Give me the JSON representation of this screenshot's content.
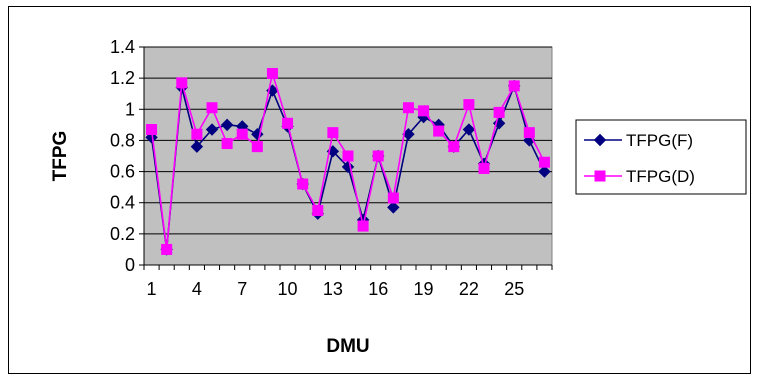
{
  "chart_data": {
    "type": "line",
    "title": "",
    "xlabel": "DMU",
    "ylabel": "TFPG",
    "x": [
      1,
      2,
      3,
      4,
      5,
      6,
      7,
      8,
      9,
      10,
      11,
      12,
      13,
      14,
      15,
      16,
      17,
      18,
      19,
      20,
      21,
      22,
      23,
      24,
      25,
      26,
      27
    ],
    "x_tick_labels": [
      "1",
      "4",
      "7",
      "10",
      "13",
      "16",
      "19",
      "22",
      "25"
    ],
    "x_tick_values": [
      1,
      4,
      7,
      10,
      13,
      16,
      19,
      22,
      25
    ],
    "ylim": [
      0,
      1.4
    ],
    "y_tick_labels": [
      "0",
      "0.2",
      "0.4",
      "0.6",
      "0.8",
      "1",
      "1.2",
      "1.4"
    ],
    "y_tick_values": [
      0,
      0.2,
      0.4,
      0.6,
      0.8,
      1,
      1.2,
      1.4
    ],
    "grid": "horizontal",
    "plot_background": "#c0c0c0",
    "legend_placement": "right",
    "series": [
      {
        "name": "TFPG(F)",
        "color": "#000080",
        "marker": "diamond",
        "values": [
          0.82,
          0.1,
          1.14,
          0.76,
          0.87,
          0.9,
          0.89,
          0.84,
          1.12,
          0.89,
          0.52,
          0.33,
          0.73,
          0.63,
          0.29,
          0.7,
          0.37,
          0.84,
          0.95,
          0.9,
          0.76,
          0.87,
          0.65,
          0.91,
          1.15,
          0.8,
          0.6
        ]
      },
      {
        "name": "TFPG(D)",
        "color": "#ff00ff",
        "marker": "square",
        "values": [
          0.87,
          0.1,
          1.17,
          0.84,
          1.01,
          0.78,
          0.84,
          0.76,
          1.23,
          0.91,
          0.52,
          0.35,
          0.85,
          0.7,
          0.25,
          0.7,
          0.43,
          1.01,
          0.99,
          0.86,
          0.76,
          1.03,
          0.62,
          0.98,
          1.15,
          0.85,
          0.66
        ]
      }
    ]
  }
}
